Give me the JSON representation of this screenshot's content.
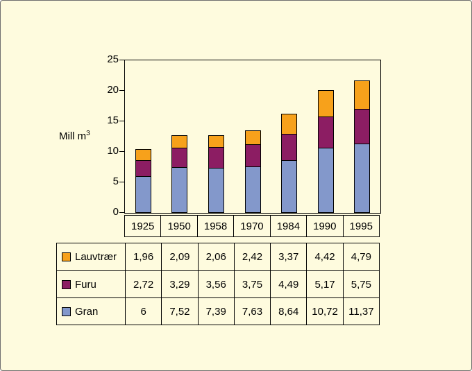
{
  "page": {
    "background_color": "#fefbde",
    "frame_border_color": "#6e6e6e"
  },
  "chart_data": {
    "type": "bar",
    "stacked": true,
    "title": "",
    "ylabel": "Mill m³",
    "ylabel_main": "Mill m",
    "ylabel_sup": "3",
    "xlabel": "",
    "ylim": [
      0,
      25
    ],
    "ytick_values": [
      25,
      20,
      15,
      10,
      5,
      0
    ],
    "ytick_labels": [
      "25",
      "20",
      "15",
      "10",
      "5",
      "0"
    ],
    "grid": false,
    "legend_position": "table-rows-left",
    "categories": [
      "1925",
      "1950",
      "1958",
      "1970",
      "1984",
      "1990",
      "1995"
    ],
    "stack_order_bottom_to_top": [
      "Gran",
      "Furu",
      "Lauvtrær"
    ],
    "series": [
      {
        "name": "Lauvtrær",
        "color": "#f7a11b",
        "values": [
          1.96,
          2.09,
          2.06,
          2.42,
          3.37,
          4.42,
          4.79
        ],
        "labels": [
          "1,96",
          "2,09",
          "2,06",
          "2,42",
          "3,37",
          "4,42",
          "4,79"
        ]
      },
      {
        "name": "Furu",
        "color": "#8c1d63",
        "values": [
          2.72,
          3.29,
          3.56,
          3.75,
          4.49,
          5.17,
          5.75
        ],
        "labels": [
          "2,72",
          "3,29",
          "3,56",
          "3,75",
          "4,49",
          "5,17",
          "5,75"
        ]
      },
      {
        "name": "Gran",
        "color": "#8398cb",
        "values": [
          6,
          7.52,
          7.39,
          7.63,
          8.64,
          10.72,
          11.37
        ],
        "labels": [
          "6",
          "7,52",
          "7,39",
          "7,63",
          "8,64",
          "10,72",
          "11,37"
        ]
      }
    ]
  }
}
